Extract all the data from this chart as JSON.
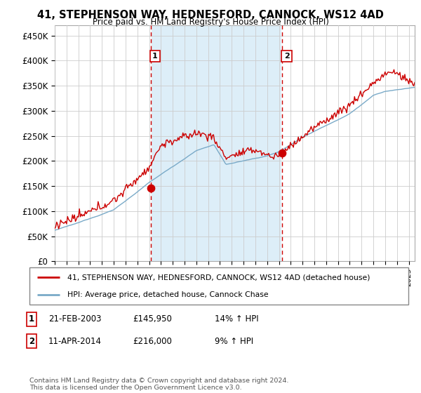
{
  "title": "41, STEPHENSON WAY, HEDNESFORD, CANNOCK, WS12 4AD",
  "subtitle": "Price paid vs. HM Land Registry's House Price Index (HPI)",
  "ylabel_ticks": [
    "£0",
    "£50K",
    "£100K",
    "£150K",
    "£200K",
    "£250K",
    "£300K",
    "£350K",
    "£400K",
    "£450K"
  ],
  "ytick_values": [
    0,
    50000,
    100000,
    150000,
    200000,
    250000,
    300000,
    350000,
    400000,
    450000
  ],
  "ylim": [
    0,
    470000
  ],
  "xlim_start": 1995.0,
  "xlim_end": 2025.5,
  "legend_line1": "41, STEPHENSON WAY, HEDNESFORD, CANNOCK, WS12 4AD (detached house)",
  "legend_line2": "HPI: Average price, detached house, Cannock Chase",
  "line_color_red": "#cc0000",
  "line_color_blue": "#7aaac8",
  "fill_color": "#ddeef8",
  "point1_label": "1",
  "point1_date": "21-FEB-2003",
  "point1_price": "£145,950",
  "point1_hpi": "14% ↑ HPI",
  "point1_x": 2003.12,
  "point1_y": 145950,
  "point2_label": "2",
  "point2_date": "11-APR-2014",
  "point2_price": "£216,000",
  "point2_hpi": "9% ↑ HPI",
  "point2_x": 2014.28,
  "point2_y": 216000,
  "footnote": "Contains HM Land Registry data © Crown copyright and database right 2024.\nThis data is licensed under the Open Government Licence v3.0.",
  "background_color": "#ffffff",
  "plot_bg_color": "#ffffff",
  "grid_color": "#cccccc",
  "vline_color": "#cc0000"
}
